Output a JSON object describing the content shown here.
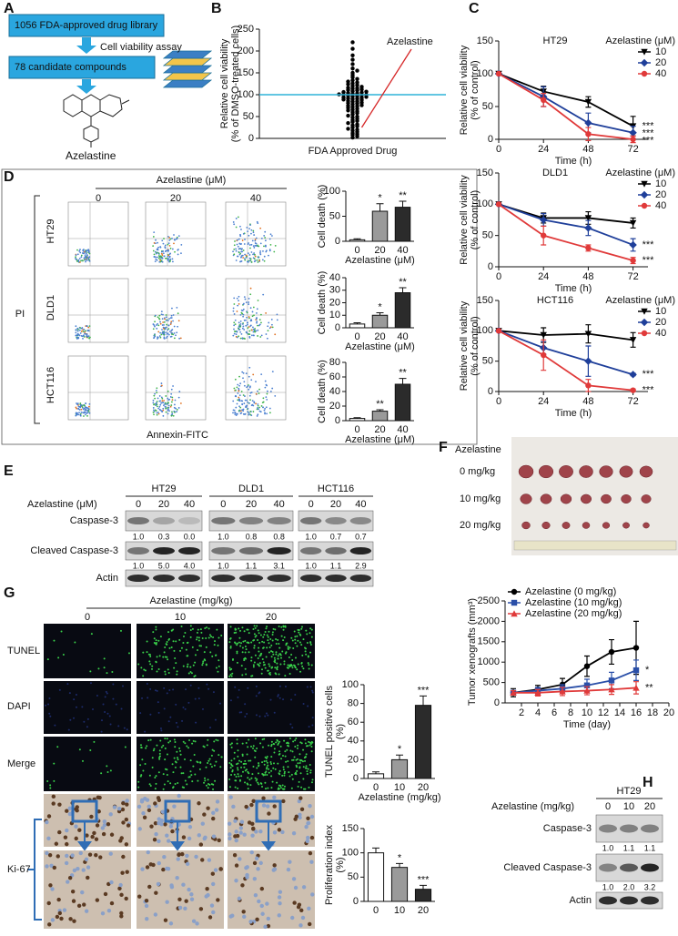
{
  "panel_letters": [
    "A",
    "B",
    "C",
    "D",
    "E",
    "F",
    "G",
    "H"
  ],
  "flowchart": {
    "library": "1056 FDA-approved drug library",
    "assay": "Cell viability assay",
    "candidates": "78 candidate compounds",
    "compound": "Azelastine"
  },
  "flow_cytometry": {
    "header": "Azelastine (μM)",
    "doses": [
      "0",
      "20",
      "40"
    ],
    "rows": [
      "HT29",
      "DLD1",
      "HCT116"
    ],
    "y_axis": "PI",
    "x_axis": "Annexin-FITC"
  },
  "western_e": {
    "treatment": "Azelastine (μM)",
    "cell_lines": [
      "HT29",
      "DLD1",
      "HCT116"
    ],
    "doses": [
      "0",
      "20",
      "40"
    ],
    "bands": [
      {
        "name": "Caspase-3",
        "quant": [
          "1.0",
          "0.3",
          "0.0",
          "1.0",
          "0.8",
          "0.8",
          "1.0",
          "0.7",
          "0.7"
        ]
      },
      {
        "name": "Cleaved Caspase-3",
        "quant": [
          "1.0",
          "5.0",
          "4.0",
          "1.0",
          "1.1",
          "3.1",
          "1.0",
          "1.1",
          "2.9"
        ]
      },
      {
        "name": "Actin"
      }
    ]
  },
  "xenograft_photo": {
    "header": "Azelastine",
    "rows": [
      "0 mg/kg",
      "10 mg/kg",
      "20 mg/kg"
    ]
  },
  "histology": {
    "header": "Azelastine (mg/kg)",
    "doses": [
      "0",
      "10",
      "20"
    ],
    "rows": [
      "TUNEL",
      "DAPI",
      "Merge",
      "Ki-67"
    ]
  },
  "western_h": {
    "cell_line": "HT29",
    "treatment": "Azelastine (mg/kg)",
    "doses": [
      "0",
      "10",
      "20"
    ],
    "bands": [
      {
        "name": "Caspase-3",
        "quant": [
          "1.0",
          "1.1",
          "1.1"
        ]
      },
      {
        "name": "Cleaved Caspase-3",
        "quant": [
          "1.0",
          "2.0",
          "3.2"
        ]
      },
      {
        "name": "Actin"
      }
    ]
  },
  "chart_data": [
    {
      "type": "scatter",
      "y_label": [
        "Relative cell viability",
        "(% of DMSO-treated cells)"
      ],
      "x_label": "FDA Approved Drug",
      "values": [
        2,
        5,
        8,
        10,
        12,
        15,
        18,
        20,
        22,
        25,
        28,
        30,
        32,
        35,
        38,
        40,
        42,
        45,
        48,
        50,
        52,
        55,
        58,
        60,
        62,
        64,
        66,
        68,
        70,
        72,
        74,
        75,
        76,
        78,
        80,
        81,
        82,
        84,
        85,
        86,
        88,
        89,
        90,
        91,
        92,
        93,
        94,
        95,
        96,
        97,
        98,
        99,
        100,
        100,
        101,
        102,
        103,
        104,
        105,
        106,
        107,
        108,
        110,
        111,
        112,
        114,
        115,
        116,
        118,
        120,
        122,
        124,
        126,
        128,
        130,
        133,
        136,
        140,
        145,
        150,
        155,
        160,
        170,
        180,
        190,
        205,
        220
      ],
      "color": "#000000",
      "reference_line": 100,
      "reference_color": "#2fb3d8",
      "annotation": {
        "text": "Azelastine",
        "value": 25,
        "color": "#d62728"
      },
      "ylim": [
        0,
        250
      ],
      "yticks": [
        0,
        50,
        100,
        150,
        200,
        250
      ]
    },
    {
      "type": "line",
      "title": "HT29",
      "legend_title": "Azelastine (μM)",
      "x_label": "Time (h)",
      "y_label": [
        "Relative cell viability",
        "(% of control)"
      ],
      "x": [
        0,
        24,
        48,
        72
      ],
      "xlim": [
        0,
        80
      ],
      "xticks": [
        0,
        24,
        48,
        72
      ],
      "ylim": [
        0,
        150
      ],
      "yticks": [
        0,
        50,
        100,
        150
      ],
      "series": [
        {
          "name": "10",
          "color": "#000000",
          "marker": "triangle-down",
          "values": [
            100,
            73,
            57,
            20
          ],
          "errors": [
            0,
            8,
            8,
            15
          ],
          "significance": "***"
        },
        {
          "name": "20",
          "color": "#1f3f9a",
          "marker": "diamond",
          "values": [
            100,
            65,
            25,
            10
          ],
          "errors": [
            0,
            15,
            15,
            10
          ],
          "significance": "***"
        },
        {
          "name": "40",
          "color": "#e03a3a",
          "marker": "circle",
          "values": [
            100,
            60,
            8,
            0
          ],
          "errors": [
            0,
            10,
            10,
            5
          ],
          "significance": "***"
        }
      ]
    },
    {
      "type": "line",
      "title": "DLD1",
      "legend_title": "Azelastine (μM)",
      "x_label": "Time (h)",
      "y_label": [
        "Relative cell viability",
        "(% of control)"
      ],
      "x": [
        0,
        24,
        48,
        72
      ],
      "xlim": [
        0,
        80
      ],
      "xticks": [
        0,
        24,
        48,
        72
      ],
      "ylim": [
        0,
        150
      ],
      "yticks": [
        0,
        50,
        100,
        150
      ],
      "series": [
        {
          "name": "10",
          "color": "#000000",
          "marker": "triangle-down",
          "values": [
            100,
            78,
            78,
            70
          ],
          "errors": [
            0,
            8,
            10,
            8
          ],
          "significance": null
        },
        {
          "name": "20",
          "color": "#1f3f9a",
          "marker": "diamond",
          "values": [
            100,
            75,
            62,
            35
          ],
          "errors": [
            0,
            10,
            12,
            10
          ],
          "significance": "***"
        },
        {
          "name": "40",
          "color": "#e03a3a",
          "marker": "circle",
          "values": [
            100,
            50,
            30,
            10
          ],
          "errors": [
            0,
            15,
            5,
            5
          ],
          "significance": "***"
        }
      ]
    },
    {
      "type": "line",
      "title": "HCT116",
      "legend_title": "Azelastine (μM)",
      "x_label": "Time (h)",
      "y_label": [
        "Relative cell viability",
        "(% of control)"
      ],
      "x": [
        0,
        24,
        48,
        72
      ],
      "xlim": [
        0,
        80
      ],
      "xticks": [
        0,
        24,
        48,
        72
      ],
      "ylim": [
        0,
        150
      ],
      "yticks": [
        0,
        50,
        100,
        150
      ],
      "series": [
        {
          "name": "10",
          "color": "#000000",
          "marker": "triangle-down",
          "values": [
            100,
            93,
            95,
            85
          ],
          "errors": [
            0,
            12,
            15,
            12
          ],
          "significance": null
        },
        {
          "name": "20",
          "color": "#1f3f9a",
          "marker": "diamond",
          "values": [
            100,
            72,
            50,
            28
          ],
          "errors": [
            0,
            10,
            25,
            2
          ],
          "significance": "***"
        },
        {
          "name": "40",
          "color": "#e03a3a",
          "marker": "circle",
          "values": [
            100,
            60,
            10,
            2
          ],
          "errors": [
            0,
            25,
            10,
            2
          ],
          "significance": "***"
        }
      ]
    },
    {
      "type": "bar",
      "y_label": [
        "Cell death (%)"
      ],
      "x_label": "Azelastine (μM)",
      "categories": [
        "0",
        "20",
        "40"
      ],
      "values": [
        3,
        60,
        68
      ],
      "errors": [
        2,
        15,
        12
      ],
      "significance": [
        null,
        "*",
        "**"
      ],
      "colors": [
        "#ffffff",
        "#9a9a9a",
        "#2b2b2b"
      ],
      "ylim": [
        0,
        100
      ],
      "yticks": [
        0,
        50,
        100
      ]
    },
    {
      "type": "bar",
      "y_label": [
        "Cell death (%)"
      ],
      "x_label": "Azelastine (μM)",
      "categories": [
        "0",
        "20",
        "40"
      ],
      "values": [
        3,
        10,
        28
      ],
      "errors": [
        1,
        2,
        4
      ],
      "significance": [
        null,
        "*",
        "**"
      ],
      "colors": [
        "#ffffff",
        "#9a9a9a",
        "#2b2b2b"
      ],
      "ylim": [
        0,
        40
      ],
      "yticks": [
        0,
        10,
        20,
        30,
        40
      ]
    },
    {
      "type": "bar",
      "y_label": [
        "Cell death (%)"
      ],
      "x_label": "Azelastine (μM)",
      "categories": [
        "0",
        "20",
        "40"
      ],
      "values": [
        3,
        13,
        50
      ],
      "errors": [
        1,
        2,
        8
      ],
      "significance": [
        null,
        "**",
        "**"
      ],
      "colors": [
        "#ffffff",
        "#9a9a9a",
        "#2b2b2b"
      ],
      "ylim": [
        0,
        80
      ],
      "yticks": [
        0,
        20,
        40,
        60,
        80
      ]
    },
    {
      "type": "line",
      "x_label": "Time (day)",
      "y_label": [
        "Tumor xenografts (mm³)"
      ],
      "legend": "top-left",
      "x": [
        1,
        4,
        7,
        10,
        13,
        16
      ],
      "xlim": [
        0,
        20
      ],
      "xticks": [
        2,
        4,
        6,
        8,
        10,
        12,
        14,
        16,
        18,
        20
      ],
      "ylim": [
        0,
        2500
      ],
      "yticks": [
        0,
        500,
        1000,
        1500,
        2000,
        2500
      ],
      "series": [
        {
          "name": "Azelastine (0 mg/kg)",
          "color": "#000000",
          "marker": "circle",
          "values": [
            250,
            330,
            450,
            900,
            1250,
            1350
          ],
          "errors": [
            100,
            100,
            150,
            250,
            300,
            650
          ],
          "significance": null
        },
        {
          "name": "Azelastine (10 mg/kg)",
          "color": "#2a4fa8",
          "marker": "square",
          "values": [
            250,
            300,
            350,
            430,
            550,
            800
          ],
          "errors": [
            50,
            80,
            100,
            150,
            200,
            250
          ],
          "significance": "*"
        },
        {
          "name": "Azelastine (20 mg/kg)",
          "color": "#e03a3a",
          "marker": "triangle",
          "values": [
            250,
            250,
            280,
            300,
            330,
            370
          ],
          "errors": [
            50,
            80,
            100,
            100,
            120,
            150
          ],
          "significance": "**"
        }
      ]
    },
    {
      "type": "bar",
      "y_label": [
        "TUNEL positive cells",
        "(%)"
      ],
      "x_label": "Azelastine (mg/kg)",
      "categories": [
        "0",
        "10",
        "20"
      ],
      "values": [
        5,
        20,
        78
      ],
      "errors": [
        2,
        5,
        10
      ],
      "significance": [
        null,
        "*",
        "***"
      ],
      "colors": [
        "#ffffff",
        "#9a9a9a",
        "#2b2b2b"
      ],
      "ylim": [
        0,
        100
      ],
      "yticks": [
        0,
        20,
        40,
        60,
        80,
        100
      ]
    },
    {
      "type": "bar",
      "y_label": [
        "Proliferation index",
        "(%)"
      ],
      "categories": [
        "0",
        "10",
        "20"
      ],
      "values": [
        100,
        70,
        25
      ],
      "errors": [
        10,
        8,
        8
      ],
      "significance": [
        null,
        "*",
        "***"
      ],
      "colors": [
        "#ffffff",
        "#9a9a9a",
        "#2b2b2b"
      ],
      "ylim": [
        0,
        150
      ],
      "yticks": [
        0,
        50,
        100,
        150
      ]
    }
  ]
}
